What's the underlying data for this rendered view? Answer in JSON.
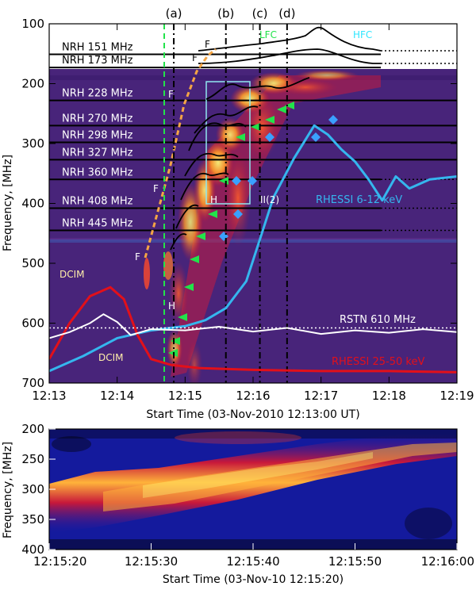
{
  "colors": {
    "rhessi_low": "#35b6ee",
    "rhessi_high": "#e2101a",
    "rstn": "#ffffff",
    "fundamental": "#f5a545",
    "green_line": "#22e34a",
    "bg": "#48247a"
  },
  "chart_data": [
    {
      "type": "line",
      "ylabel": "Frequency, [MHz]",
      "xlabel": "Start Time (03-Nov-2010 12:13:00 UT)",
      "x_ticks": [
        "12:13",
        "12:14",
        "12:15",
        "12:16",
        "12:17",
        "12:18",
        "12:19"
      ],
      "y_ticks": [
        "100",
        "200",
        "300",
        "400",
        "500",
        "600",
        "700"
      ],
      "ylim": [
        700,
        100
      ],
      "markers": [
        {
          "label": "(a)",
          "time": "12:14:50"
        },
        {
          "label": "(b)",
          "time": "12:15:36"
        },
        {
          "label": "(c)",
          "time": "12:16:06"
        },
        {
          "label": "(d)",
          "time": "12:16:30"
        }
      ],
      "nrh_channels": [
        {
          "label": "NRH 151 MHz",
          "freq": 151
        },
        {
          "label": "NRH 173 MHz",
          "freq": 173
        },
        {
          "label": "NRH 228 MHz",
          "freq": 228
        },
        {
          "label": "NRH 270 MHz",
          "freq": 270
        },
        {
          "label": "NRH 298 MHz",
          "freq": 298
        },
        {
          "label": "NRH 327 MHz",
          "freq": 327
        },
        {
          "label": "NRH 360 MHz",
          "freq": 360
        },
        {
          "label": "NRH 408 MHz",
          "freq": 408
        },
        {
          "label": "NRH 445 MHz",
          "freq": 445
        }
      ],
      "annotations": [
        "F",
        "F",
        "F",
        "F",
        "F",
        "H",
        "H",
        "LFC",
        "HFC",
        "II(2)",
        "DCIM",
        "DCIM"
      ],
      "series": [
        {
          "name": "RHESSI 6-12 keV",
          "x": [
            13.0,
            13.5,
            14.0,
            14.5,
            15.0,
            15.3,
            15.6,
            15.9,
            16.1,
            16.3,
            16.6,
            16.9,
            17.1,
            17.3,
            17.5,
            17.7,
            17.9,
            18.1,
            18.3,
            18.6,
            19.0
          ],
          "y": [
            680,
            655,
            625,
            612,
            605,
            595,
            575,
            530,
            460,
            390,
            325,
            270,
            285,
            310,
            330,
            360,
            395,
            355,
            375,
            360,
            355
          ]
        },
        {
          "name": "RHESSI 25-50 keV",
          "x": [
            13.0,
            13.3,
            13.6,
            13.9,
            14.1,
            14.3,
            14.5,
            14.8,
            15.2,
            16.0,
            17.0,
            18.0,
            19.0
          ],
          "y": [
            660,
            600,
            555,
            540,
            560,
            620,
            660,
            670,
            675,
            678,
            680,
            680,
            682
          ]
        },
        {
          "name": "RSTN 610 MHz",
          "x": [
            13.0,
            13.3,
            13.6,
            13.8,
            14.0,
            14.2,
            14.5,
            15.0,
            15.5,
            16.0,
            16.5,
            17.0,
            17.5,
            18.0,
            18.5,
            19.0
          ],
          "y": [
            625,
            615,
            600,
            585,
            598,
            620,
            610,
            612,
            606,
            614,
            608,
            618,
            612,
            616,
            610,
            615
          ]
        }
      ],
      "legend": [
        "RHESSI 6-12 keV",
        "RSTN 610 MHz",
        "RHESSI 25-50 keV"
      ]
    },
    {
      "type": "heatmap",
      "ylabel": "Frequency, [MHz]",
      "xlabel": "Start Time (03-Nov-10 12:15:20)",
      "x_ticks": [
        "12:15:20",
        "12:15:30",
        "12:15:40",
        "12:15:50",
        "12:16:00"
      ],
      "y_ticks": [
        "200",
        "250",
        "300",
        "350",
        "400"
      ],
      "ylim": [
        400,
        200
      ]
    }
  ]
}
